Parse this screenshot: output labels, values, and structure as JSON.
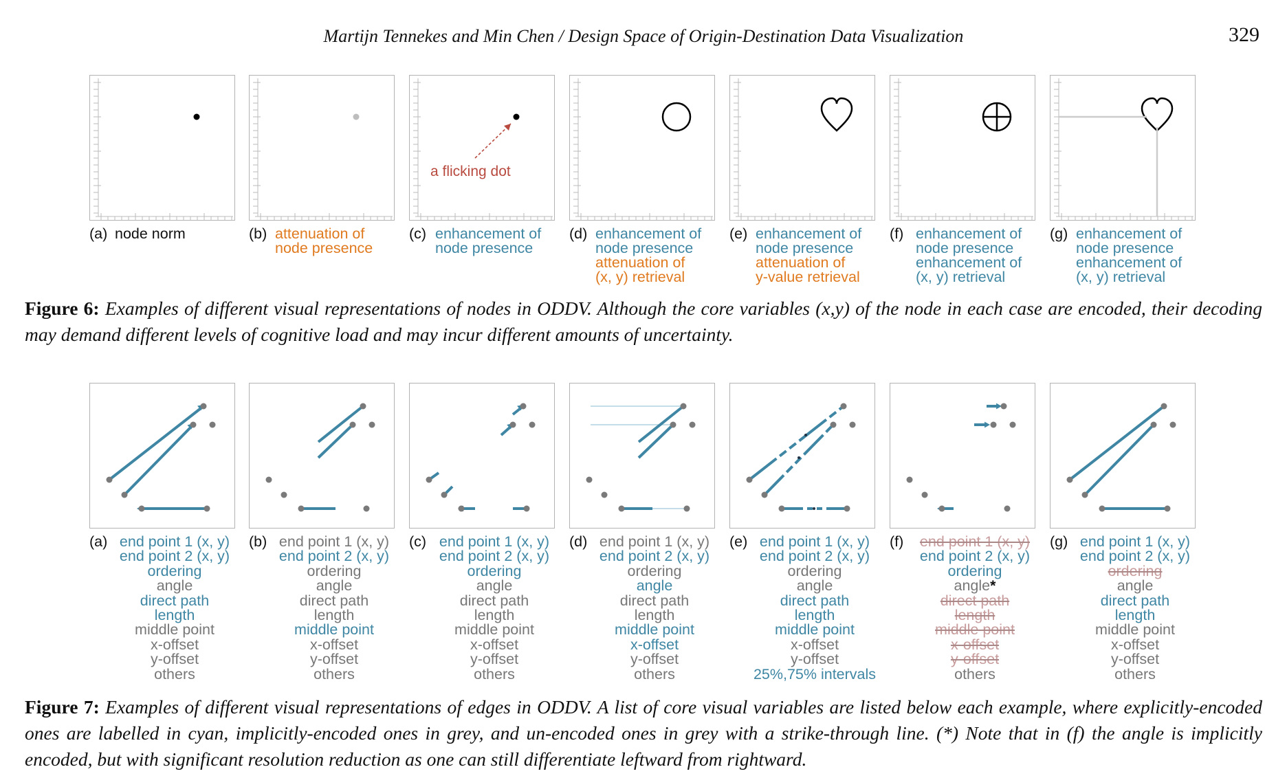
{
  "header": {
    "running_title": "Martijn Tennekes and Min Chen / Design Space of Origin-Destination Data Visualization",
    "page_number": "329"
  },
  "colors": {
    "teal": "#3e86a3",
    "orange": "#e07a1f",
    "grey": "#777777",
    "strike": "#c79b9b",
    "annotation": "#b84a3f"
  },
  "figure6": {
    "annotation": "a flicking dot",
    "panels": [
      {
        "letter": "(a)",
        "lines": [
          {
            "text": "node norm",
            "style": "black"
          }
        ]
      },
      {
        "letter": "(b)",
        "lines": [
          {
            "text": "attenuation of",
            "style": "orange"
          },
          {
            "text": "node presence",
            "style": "orange"
          }
        ]
      },
      {
        "letter": "(c)",
        "lines": [
          {
            "text": "enhancement of",
            "style": "teal"
          },
          {
            "text": "node presence",
            "style": "teal"
          }
        ]
      },
      {
        "letter": "(d)",
        "lines": [
          {
            "text": "enhancement of",
            "style": "teal"
          },
          {
            "text": "node presence",
            "style": "teal"
          },
          {
            "text": "attenuation of",
            "style": "orange"
          },
          {
            "text": "(x, y) retrieval",
            "style": "orange"
          }
        ]
      },
      {
        "letter": "(e)",
        "lines": [
          {
            "text": "enhancement of",
            "style": "teal"
          },
          {
            "text": "node presence",
            "style": "teal"
          },
          {
            "text": "attenuation of",
            "style": "orange"
          },
          {
            "text": "y-value  retrieval",
            "style": "orange"
          }
        ]
      },
      {
        "letter": "(f)",
        "lines": [
          {
            "text": "enhancement of",
            "style": "teal"
          },
          {
            "text": "node presence",
            "style": "teal"
          },
          {
            "text": "enhancement of",
            "style": "teal"
          },
          {
            "text": "(x, y) retrieval",
            "style": "teal"
          }
        ]
      },
      {
        "letter": "(g)",
        "lines": [
          {
            "text": "enhancement of",
            "style": "teal"
          },
          {
            "text": "node presence",
            "style": "teal"
          },
          {
            "text": "enhancement of",
            "style": "teal"
          },
          {
            "text": "(x, y) retrieval",
            "style": "teal"
          }
        ]
      }
    ],
    "caption_label": "Figure 6:",
    "caption_text": "Examples of different visual representations of nodes in ODDV. Although the core variables (x,y) of the node in each case are encoded, their decoding may demand different levels of cognitive load and may incur different amounts of uncertainty."
  },
  "figure7": {
    "panels": [
      {
        "letter": "(a)",
        "items": [
          {
            "text": "end point 1 (x, y)",
            "style": "teal"
          },
          {
            "text": "end point 2 (x, y)",
            "style": "teal"
          },
          {
            "text": "ordering",
            "style": "teal"
          },
          {
            "text": "angle",
            "style": "grey"
          },
          {
            "text": "direct path",
            "style": "teal"
          },
          {
            "text": "length",
            "style": "teal"
          },
          {
            "text": "middle point",
            "style": "grey"
          },
          {
            "text": "x-offset",
            "style": "grey"
          },
          {
            "text": "y-offset",
            "style": "grey"
          },
          {
            "text": "others",
            "style": "grey"
          }
        ]
      },
      {
        "letter": "(b)",
        "items": [
          {
            "text": "end point 1 (x, y)",
            "style": "grey"
          },
          {
            "text": "end point 2 (x, y)",
            "style": "teal"
          },
          {
            "text": "ordering",
            "style": "grey"
          },
          {
            "text": "angle",
            "style": "grey"
          },
          {
            "text": "direct path",
            "style": "grey"
          },
          {
            "text": "length",
            "style": "grey"
          },
          {
            "text": "middle point",
            "style": "teal"
          },
          {
            "text": "x-offset",
            "style": "grey"
          },
          {
            "text": "y-offset",
            "style": "grey"
          },
          {
            "text": "others",
            "style": "grey"
          }
        ]
      },
      {
        "letter": "(c)",
        "items": [
          {
            "text": "end point 1 (x, y)",
            "style": "teal"
          },
          {
            "text": "end point 2 (x, y)",
            "style": "teal"
          },
          {
            "text": "ordering",
            "style": "teal"
          },
          {
            "text": "angle",
            "style": "grey"
          },
          {
            "text": "direct path",
            "style": "grey"
          },
          {
            "text": "length",
            "style": "grey"
          },
          {
            "text": "middle point",
            "style": "grey"
          },
          {
            "text": "x-offset",
            "style": "grey"
          },
          {
            "text": "y-offset",
            "style": "grey"
          },
          {
            "text": "others",
            "style": "grey"
          }
        ]
      },
      {
        "letter": "(d)",
        "items": [
          {
            "text": "end point 1 (x, y)",
            "style": "grey"
          },
          {
            "text": "end point 2 (x, y)",
            "style": "teal"
          },
          {
            "text": "ordering",
            "style": "grey"
          },
          {
            "text": "angle",
            "style": "teal"
          },
          {
            "text": "direct path",
            "style": "grey"
          },
          {
            "text": "length",
            "style": "grey"
          },
          {
            "text": "middle point",
            "style": "teal"
          },
          {
            "text": "x-offset",
            "style": "teal"
          },
          {
            "text": "y-offset",
            "style": "grey"
          },
          {
            "text": "others",
            "style": "grey"
          }
        ]
      },
      {
        "letter": "(e)",
        "items": [
          {
            "text": "end point 1 (x, y)",
            "style": "teal"
          },
          {
            "text": "end point 2 (x, y)",
            "style": "teal"
          },
          {
            "text": "ordering",
            "style": "grey"
          },
          {
            "text": "angle",
            "style": "grey"
          },
          {
            "text": "direct path",
            "style": "teal"
          },
          {
            "text": "length",
            "style": "teal"
          },
          {
            "text": "middle point",
            "style": "teal"
          },
          {
            "text": "x-offset",
            "style": "grey"
          },
          {
            "text": "y-offset",
            "style": "grey"
          },
          {
            "text": "25%,75% intervals",
            "style": "teal"
          }
        ]
      },
      {
        "letter": "(f)",
        "items": [
          {
            "text": "end point 1 (x, y)",
            "style": "strike"
          },
          {
            "text": "end point 2 (x, y)",
            "style": "teal"
          },
          {
            "text": "ordering",
            "style": "teal"
          },
          {
            "text": "angle",
            "style": "grey",
            "suffix": "*"
          },
          {
            "text": "direct path",
            "style": "strike"
          },
          {
            "text": "length",
            "style": "strike"
          },
          {
            "text": "middle point",
            "style": "strike"
          },
          {
            "text": "x-offset",
            "style": "strike"
          },
          {
            "text": "y-offset",
            "style": "strike"
          },
          {
            "text": "others",
            "style": "grey"
          }
        ]
      },
      {
        "letter": "(g)",
        "items": [
          {
            "text": "end point 1 (x, y)",
            "style": "teal"
          },
          {
            "text": "end point 2 (x, y)",
            "style": "teal"
          },
          {
            "text": "ordering",
            "style": "strike"
          },
          {
            "text": "angle",
            "style": "grey"
          },
          {
            "text": "direct path",
            "style": "teal"
          },
          {
            "text": "length",
            "style": "teal"
          },
          {
            "text": "middle point",
            "style": "grey"
          },
          {
            "text": "x-offset",
            "style": "grey"
          },
          {
            "text": "y-offset",
            "style": "grey"
          },
          {
            "text": "others",
            "style": "grey"
          }
        ]
      }
    ],
    "caption_label": "Figure 7:",
    "caption_text": "Examples of different visual representations of edges in ODDV. A list of core visual variables are listed below each example, where explicitly-encoded ones are labelled in cyan, implicitly-encoded ones in grey, and un-encoded ones in grey with a strike-through line. (*) Note that in (f) the angle is implicitly encoded, but with significant resolution reduction as one can still differentiate leftward from rightward."
  }
}
